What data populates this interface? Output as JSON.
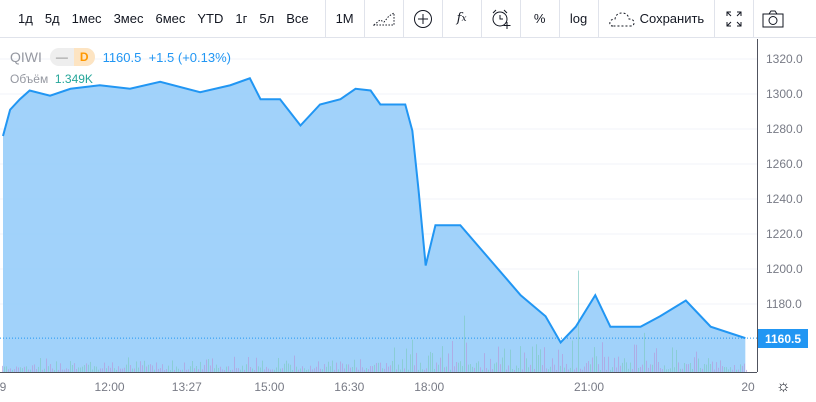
{
  "toolbar": {
    "ranges": [
      "1д",
      "5д",
      "1мес",
      "3мес",
      "6мес",
      "YTD",
      "1г",
      "5л",
      "Все"
    ],
    "interval": "1M",
    "icons": [
      "area-chart-icon",
      "compare-plus-icon",
      "indicators-fx-icon",
      "alert-clock-icon"
    ],
    "percent": "%",
    "log": "log",
    "save": "Сохранить"
  },
  "legend": {
    "symbol": "QIWI",
    "pill_left": "—",
    "pill_right": "D",
    "price": "1160.5",
    "change": "+1.5",
    "change_pct": "(+0.13%)",
    "volume_label": "Объём",
    "volume_value": "1.349K"
  },
  "colors": {
    "line": "#2196f3",
    "area": "#90caf9",
    "accent": "#2196f3"
  },
  "chart_data": {
    "type": "area",
    "ylim": [
      1140,
      1330
    ],
    "y_ticks": [
      "1320.0",
      "1300.0",
      "1280.0",
      "1260.0",
      "1240.0",
      "1220.0",
      "1200.0",
      "1180.0"
    ],
    "x_ticks": [
      {
        "t": "10:00",
        "label": "9"
      },
      {
        "t": "12:00",
        "label": "12:00"
      },
      {
        "t": "13:27",
        "label": "13:27"
      },
      {
        "t": "15:00",
        "label": "15:00"
      },
      {
        "t": "16:30",
        "label": "16:30"
      },
      {
        "t": "18:00",
        "label": "18:00"
      },
      {
        "t": "21:00",
        "label": "21:00"
      },
      {
        "t": "23:59",
        "label": "20"
      }
    ],
    "last_price": "1160.5",
    "series": [
      {
        "x": [
          "10:00",
          "10:08",
          "10:19",
          "10:30",
          "10:53",
          "11:16",
          "11:49",
          "12:23",
          "12:57",
          "13:42",
          "14:16",
          "14:38",
          "14:50",
          "15:12",
          "15:35",
          "15:57",
          "16:20",
          "16:37",
          "16:54",
          "17:05",
          "17:33",
          "17:41",
          "17:48",
          "17:56",
          "18:07",
          "18:35",
          "19:09",
          "19:43",
          "20:11",
          "20:28",
          "20:45",
          "21:07",
          "21:24",
          "21:58",
          "22:20",
          "22:49",
          "23:17",
          "23:56"
        ],
        "y": [
          1276,
          1291,
          1297,
          1302,
          1299,
          1303,
          1305,
          1303,
          1307,
          1301,
          1305,
          1309,
          1297,
          1297,
          1282,
          1294,
          1297,
          1303,
          1302,
          1294,
          1294,
          1279,
          1245,
          1202,
          1225,
          1225,
          1205,
          1185,
          1173,
          1158,
          1167,
          1185,
          1167,
          1167,
          1173,
          1182,
          1167,
          1160.5
        ]
      }
    ]
  }
}
